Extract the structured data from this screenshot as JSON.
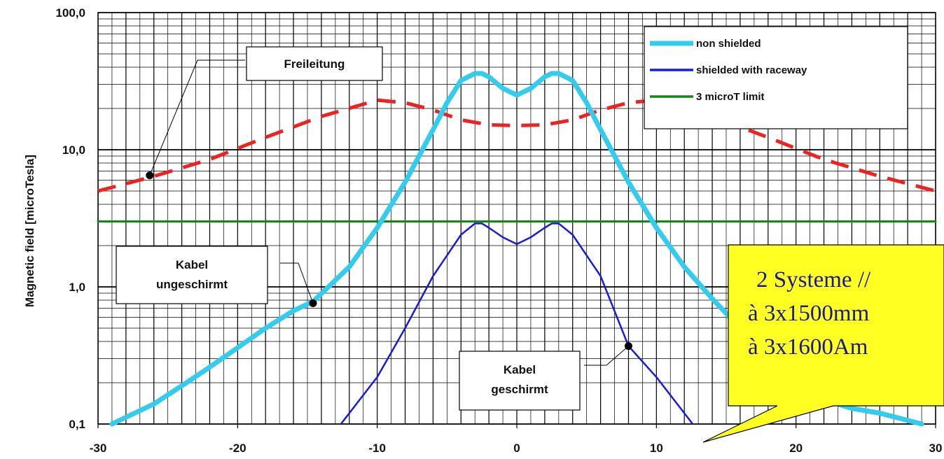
{
  "chart_data": {
    "type": "line",
    "ylabel": "Magnetic field [microTesla]",
    "xlim": [
      -30,
      30
    ],
    "ylim": [
      0.1,
      100
    ],
    "yscale": "log",
    "grid": true,
    "legend_position": "top-right",
    "x_ticks": [
      "-30",
      "-20",
      "-10",
      "0",
      "10",
      "20",
      "30"
    ],
    "y_ticks": [
      "0,1",
      "1,0",
      "10,0",
      "100,0"
    ],
    "series": [
      {
        "name": "non shielded",
        "color": "#33ccee",
        "style": "solid-thick",
        "x": [
          -29,
          -26,
          -24,
          -22,
          -20,
          -18,
          -16,
          -14.6,
          -12,
          -10,
          -8,
          -6,
          -5,
          -4,
          -3,
          -2.5,
          -2,
          -1,
          0,
          1,
          2,
          2.5,
          3,
          4,
          5,
          6,
          8,
          10,
          12,
          14,
          16,
          18,
          20,
          22,
          24,
          26,
          29
        ],
        "y": [
          0.1,
          0.14,
          0.19,
          0.26,
          0.36,
          0.5,
          0.67,
          0.78,
          1.4,
          2.7,
          5.8,
          14,
          22,
          32,
          36,
          36,
          34,
          28,
          25,
          28,
          34,
          36,
          36,
          32,
          22,
          14,
          5.8,
          2.7,
          1.4,
          0.82,
          0.5,
          0.3,
          0.2,
          0.15,
          0.13,
          0.12,
          0.1
        ]
      },
      {
        "name": "shielded with raceway",
        "color": "#1a1add",
        "style": "solid",
        "x": [
          -12.6,
          -10,
          -8,
          -6,
          -4,
          -3,
          -2.5,
          -2,
          -1,
          0,
          1,
          2,
          2.5,
          3,
          4,
          6,
          8,
          10,
          12.6
        ],
        "y": [
          0.1,
          0.22,
          0.5,
          1.2,
          2.4,
          2.9,
          2.9,
          2.7,
          2.3,
          2.05,
          2.3,
          2.7,
          2.9,
          2.9,
          2.4,
          1.2,
          0.37,
          0.22,
          0.1
        ]
      },
      {
        "name": "3 microT limit",
        "color": "#118811",
        "style": "solid",
        "x": [
          -30,
          30
        ],
        "y": [
          3,
          3
        ]
      },
      {
        "name": "",
        "color": "#ee2222",
        "style": "dashed",
        "x": [
          -30,
          -26,
          -22,
          -18,
          -14,
          -10,
          -8,
          -6,
          -4,
          -2,
          0,
          2,
          4,
          6,
          8,
          10,
          14,
          18,
          22,
          26,
          30
        ],
        "y": [
          5,
          6.4,
          8.5,
          12.3,
          17.5,
          23,
          22,
          19.5,
          16.5,
          15.2,
          15,
          15.2,
          16.5,
          19.5,
          22,
          23,
          17.5,
          12.3,
          8.5,
          6.4,
          5
        ]
      }
    ],
    "annotations": {
      "freileitung": {
        "text": "Freileitung",
        "x": -26.3,
        "y": 6.5
      },
      "kabel_ungeschirmt": {
        "lines": [
          "Kabel",
          "ungeschirmt"
        ],
        "x": -14.6,
        "y": 0.76
      },
      "kabel_geschirmt": {
        "lines": [
          "Kabel",
          "geschirmt"
        ],
        "x": 8,
        "y": 0.37
      },
      "callout": {
        "lines": [
          "2 Systeme //",
          "à 3x1500mm",
          "à 3x1600Am"
        ]
      }
    }
  }
}
